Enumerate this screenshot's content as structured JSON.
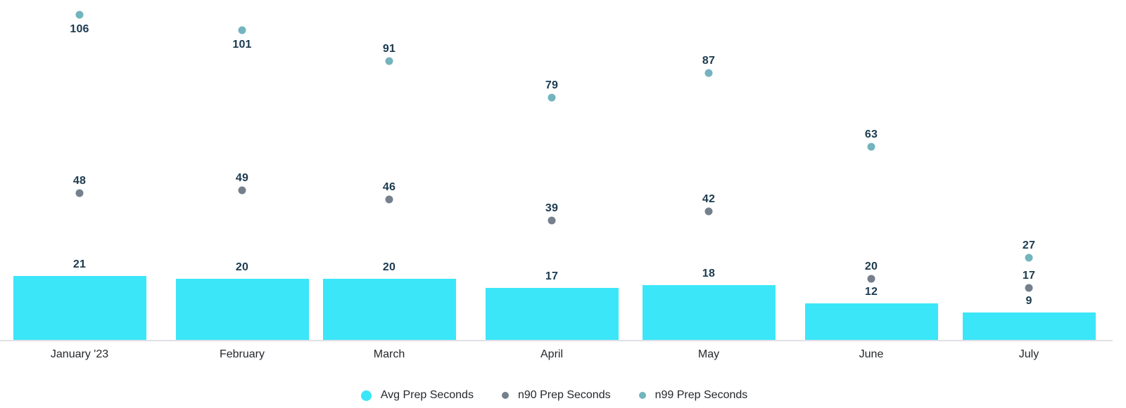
{
  "chart_data": {
    "type": "bar",
    "title": "",
    "xlabel": "",
    "ylabel": "",
    "categories": [
      "January '23",
      "February",
      "March",
      "April",
      "May",
      "June",
      "July"
    ],
    "series": [
      {
        "name": "Avg Prep Seconds",
        "mark": "bar",
        "color": "#3BE6F8",
        "values": [
          21,
          20,
          20,
          17,
          18,
          12,
          9
        ]
      },
      {
        "name": "n90 Prep Seconds",
        "mark": "point",
        "color": "#75808C",
        "values": [
          48,
          49,
          46,
          39,
          42,
          20,
          17
        ]
      },
      {
        "name": "n99 Prep Seconds",
        "mark": "point",
        "color": "#73B4BE",
        "values": [
          106,
          101,
          91,
          79,
          87,
          63,
          27
        ]
      }
    ],
    "ylim": [
      0,
      111
    ],
    "grid": false,
    "y_axis_visible": false,
    "legend_position": "bottom",
    "value_labels": true
  },
  "style": {
    "background": "#FFFFFF",
    "axis_line_color": "#E0E0E6",
    "value_label_color": "#1B3A4F",
    "axis_label_color": "#24272B",
    "legend_text_color": "#24272B"
  }
}
